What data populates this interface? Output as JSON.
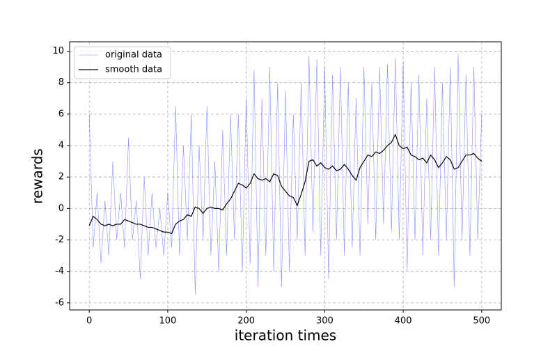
{
  "chart_data": {
    "type": "line",
    "xlabel": "iteration times",
    "ylabel": "rewards",
    "x": [
      0,
      5,
      10,
      15,
      20,
      25,
      30,
      35,
      40,
      45,
      50,
      55,
      60,
      65,
      70,
      75,
      80,
      85,
      90,
      95,
      100,
      105,
      110,
      115,
      120,
      125,
      130,
      135,
      140,
      145,
      150,
      155,
      160,
      165,
      170,
      175,
      180,
      185,
      190,
      195,
      200,
      205,
      210,
      215,
      220,
      225,
      230,
      235,
      240,
      245,
      250,
      255,
      260,
      265,
      270,
      275,
      280,
      285,
      290,
      295,
      300,
      305,
      310,
      315,
      320,
      325,
      330,
      335,
      340,
      345,
      350,
      355,
      360,
      365,
      370,
      375,
      380,
      385,
      390,
      395,
      400,
      405,
      410,
      415,
      420,
      425,
      430,
      435,
      440,
      445,
      450,
      455,
      460,
      465,
      470,
      475,
      480,
      485,
      490,
      495,
      500
    ],
    "series": [
      {
        "name": "original data",
        "color": "#0000ff",
        "values": [
          6,
          -2.5,
          1,
          -3.5,
          0.5,
          -3,
          3,
          -2,
          1,
          -2.5,
          4.5,
          -2,
          0.5,
          -4.5,
          2,
          -3,
          1,
          -2.5,
          0,
          -3,
          1,
          -2.5,
          6.5,
          -3,
          4,
          -2,
          6,
          -5.5,
          4,
          -2,
          6.5,
          -3,
          3,
          -4,
          5,
          -3,
          6,
          -2,
          6,
          -4,
          7,
          -3.5,
          8.8,
          -5,
          7,
          -3,
          9,
          -4,
          8,
          -5,
          7.5,
          -4,
          6,
          -2,
          8,
          -3,
          9.7,
          -1.5,
          9.5,
          -3,
          9,
          -4.5,
          8.5,
          -2,
          9,
          -3,
          8,
          -2.5,
          7,
          -3,
          9,
          -1,
          8,
          -2,
          9,
          -1,
          9.2,
          -1.5,
          9.6,
          -2,
          9.3,
          -4,
          8,
          -2,
          8.5,
          -3,
          7,
          -2,
          9,
          -3,
          8,
          -2,
          9,
          -5,
          9.8,
          -2,
          8.5,
          -3,
          9,
          -2,
          6
        ]
      },
      {
        "name": "smooth data",
        "color": "#000000",
        "values": [
          -1.1,
          -0.5,
          -0.7,
          -1.0,
          -1.1,
          -1.0,
          -1.1,
          -1.0,
          -1.0,
          -0.7,
          -0.8,
          -0.9,
          -1.0,
          -1.0,
          -1.1,
          -1.2,
          -1.2,
          -1.3,
          -1.4,
          -1.5,
          -1.5,
          -1.6,
          -1.0,
          -0.8,
          -0.7,
          -0.4,
          -0.5,
          0.1,
          0.0,
          -0.3,
          0.0,
          0.1,
          0.0,
          0.0,
          -0.1,
          0.3,
          0.6,
          1.1,
          1.6,
          1.5,
          1.3,
          1.6,
          2.2,
          1.9,
          1.8,
          1.9,
          1.7,
          2.2,
          2.1,
          1.4,
          1.1,
          0.8,
          0.7,
          0.2,
          0.9,
          1.7,
          3.0,
          3.1,
          2.7,
          2.9,
          2.6,
          2.5,
          2.7,
          2.4,
          2.5,
          2.8,
          2.5,
          2.1,
          1.8,
          2.6,
          3.0,
          3.4,
          3.3,
          3.6,
          3.5,
          3.7,
          4.0,
          4.2,
          4.7,
          4.0,
          3.8,
          3.9,
          3.4,
          3.3,
          3.1,
          3.2,
          2.9,
          3.4,
          3.1,
          2.6,
          2.9,
          3.3,
          3.1,
          2.5,
          2.6,
          3.0,
          3.4,
          3.4,
          3.5,
          3.2,
          3.0
        ]
      }
    ],
    "xlim": [
      -25,
      525
    ],
    "xticks": [
      0,
      100,
      200,
      300,
      400,
      500
    ],
    "ylim": [
      -6.45,
      10.6
    ],
    "yticks": [
      -6,
      -4,
      -2,
      0,
      2,
      4,
      6,
      8,
      10
    ],
    "grid": true,
    "legend": "upper left"
  }
}
